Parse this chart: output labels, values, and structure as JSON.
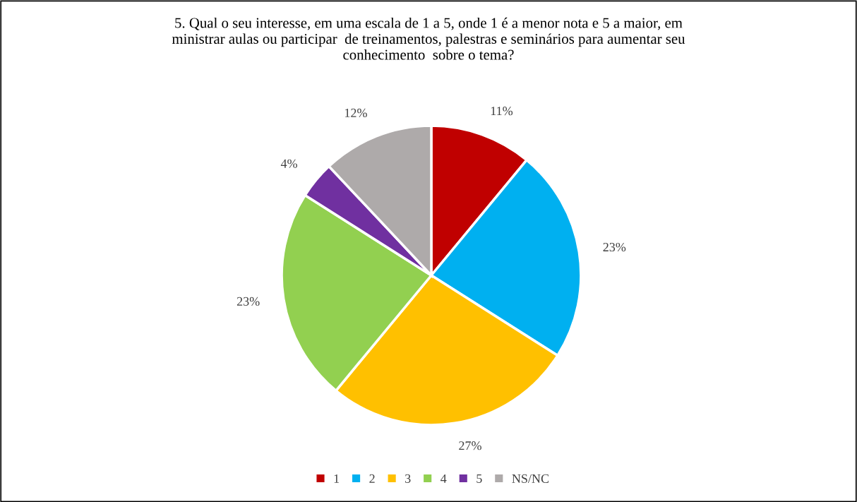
{
  "chart_data": {
    "type": "pie",
    "title": "5. Qual o seu interesse, em uma escala de 1 a 5, onde 1 é a menor nota e 5 a maior, em\nministrar aulas ou participar  de treinamentos, palestras e seminários para aumentar seu\nconhecimento  sobre o tema?",
    "categories": [
      "1",
      "2",
      "3",
      "4",
      "5",
      "NS/NC"
    ],
    "values": [
      11,
      23,
      27,
      23,
      4,
      12
    ],
    "colors": [
      "#c00000",
      "#00b0f0",
      "#ffc000",
      "#92d050",
      "#7030a0",
      "#aeaaaa"
    ],
    "value_labels": [
      "11%",
      "23%",
      "27%",
      "23%",
      "4%",
      "12%"
    ],
    "legend": "bottom"
  }
}
